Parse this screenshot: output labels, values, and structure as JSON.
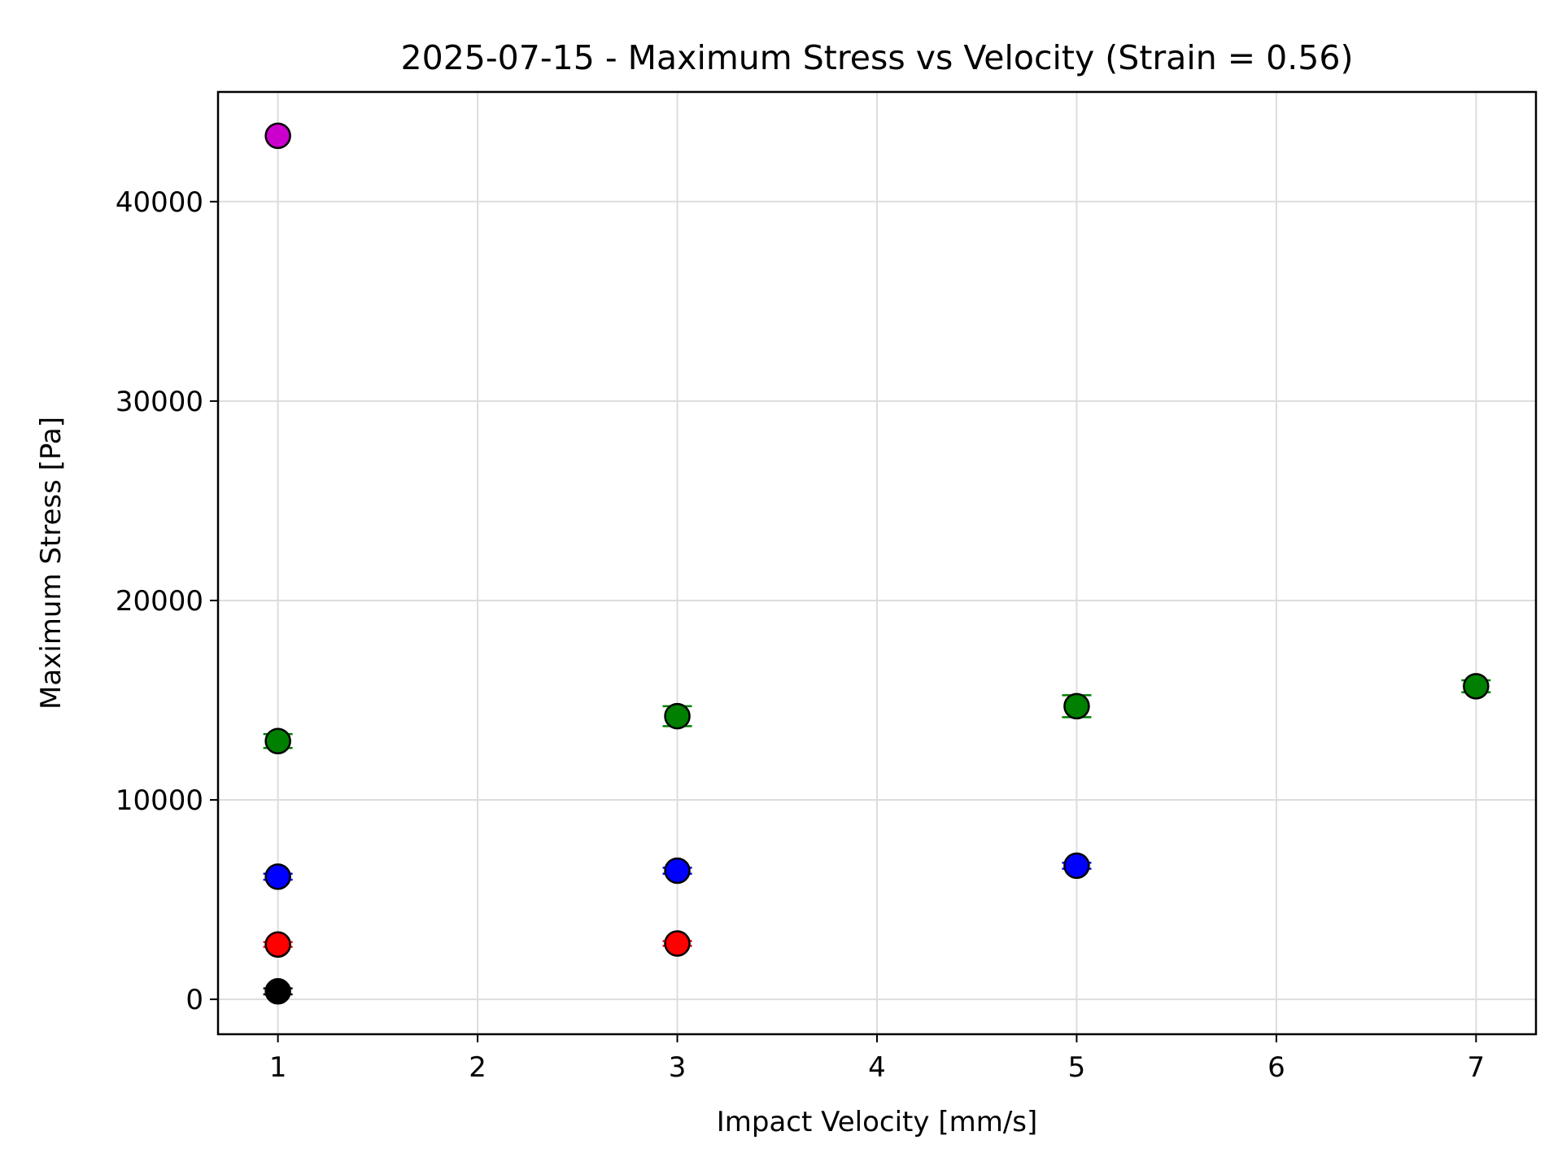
{
  "chart_data": {
    "type": "scatter",
    "title": "2025-07-15 - Maximum Stress vs Velocity (Strain = 0.56)",
    "xlabel": "Impact Velocity [mm/s]",
    "ylabel": "Maximum Stress [Pa]",
    "xlim": [
      0.7,
      7.3
    ],
    "ylim": [
      -1750,
      45500
    ],
    "xticks": [
      1,
      2,
      3,
      4,
      5,
      6,
      7
    ],
    "yticks": [
      0,
      10000,
      20000,
      30000,
      40000
    ],
    "grid": true,
    "series": [
      {
        "color": "#ff0000",
        "x": [
          1,
          3
        ],
        "y": [
          2750,
          2800
        ],
        "err": [
          120,
          120
        ]
      },
      {
        "color": "#0000ff",
        "x": [
          1,
          3,
          5
        ],
        "y": [
          6150,
          6450,
          6700
        ],
        "err": [
          150,
          150,
          150
        ]
      },
      {
        "color": "#008000",
        "x": [
          1,
          3,
          5,
          7
        ],
        "y": [
          12950,
          14200,
          14700,
          15700
        ],
        "err": [
          350,
          500,
          550,
          300
        ]
      },
      {
        "color": "#cc00cc",
        "x": [
          1
        ],
        "y": [
          43300
        ],
        "err": [
          0
        ]
      },
      {
        "color": "#000000",
        "x": [
          1
        ],
        "y": [
          400
        ],
        "err": [
          150
        ]
      }
    ]
  }
}
